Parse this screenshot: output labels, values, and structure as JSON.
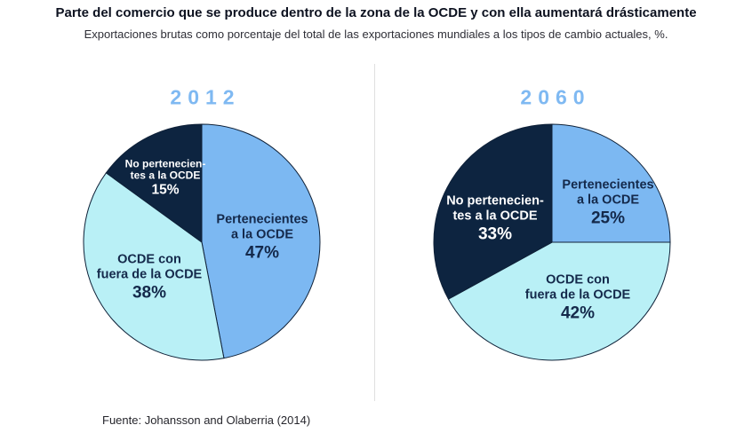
{
  "header": {
    "title": "Parte del comercio que se produce dentro de la zona de la OCDE y con ella aumentará drásticamente",
    "subtitle": "Exportaciones brutas como porcentaje del total de las exportaciones mundiales a los tipos de cambio actuales, %."
  },
  "footer": {
    "source": "Fuente: Johansson and Olaberria (2014)"
  },
  "colors": {
    "slice_oecd_member": "#7cb8f2",
    "slice_oecd_with_non_oecd": "#b9f0f6",
    "slice_non_oecd": "#0d2440",
    "year_heading": "#7fb9f2",
    "slice_outline": "#0f2138",
    "label_navy_text": "#14294b",
    "label_white_text": "#ffffff",
    "divider": "#e0e0e0"
  },
  "chart_data": [
    {
      "type": "pie",
      "title": "2012",
      "labels": [
        "Pertenecientes a la OCDE",
        "OCDE con fuera de la OCDE",
        "No pertenecientes a la OCDE"
      ],
      "values": [
        47,
        38,
        15
      ],
      "pct_labels": [
        "47%",
        "38%",
        "15%"
      ],
      "slice_label_lines": [
        [
          "Pertenecientes",
          "a la OCDE"
        ],
        [
          "OCDE con",
          "fuera de la OCDE"
        ],
        [
          "No pertenecien-",
          "tes a la OCDE"
        ]
      ],
      "colors": [
        "#7cb8f2",
        "#b9f0f6",
        "#0d2440"
      ],
      "start_angle_deg": 0,
      "direction": "clockwise",
      "legend": "none"
    },
    {
      "type": "pie",
      "title": "2060",
      "labels": [
        "Pertenecientes a la OCDE",
        "OCDE con fuera de la OCDE",
        "No pertenecientes a la OCDE"
      ],
      "values": [
        25,
        42,
        33
      ],
      "pct_labels": [
        "25%",
        "42%",
        "33%"
      ],
      "slice_label_lines": [
        [
          "Pertenecientes",
          "a la OCDE"
        ],
        [
          "OCDE con",
          "fuera de la OCDE"
        ],
        [
          "No pertenecien-",
          "tes a la OCDE"
        ]
      ],
      "colors": [
        "#7cb8f2",
        "#b9f0f6",
        "#0d2440"
      ],
      "start_angle_deg": 0,
      "direction": "clockwise",
      "legend": "none"
    }
  ]
}
